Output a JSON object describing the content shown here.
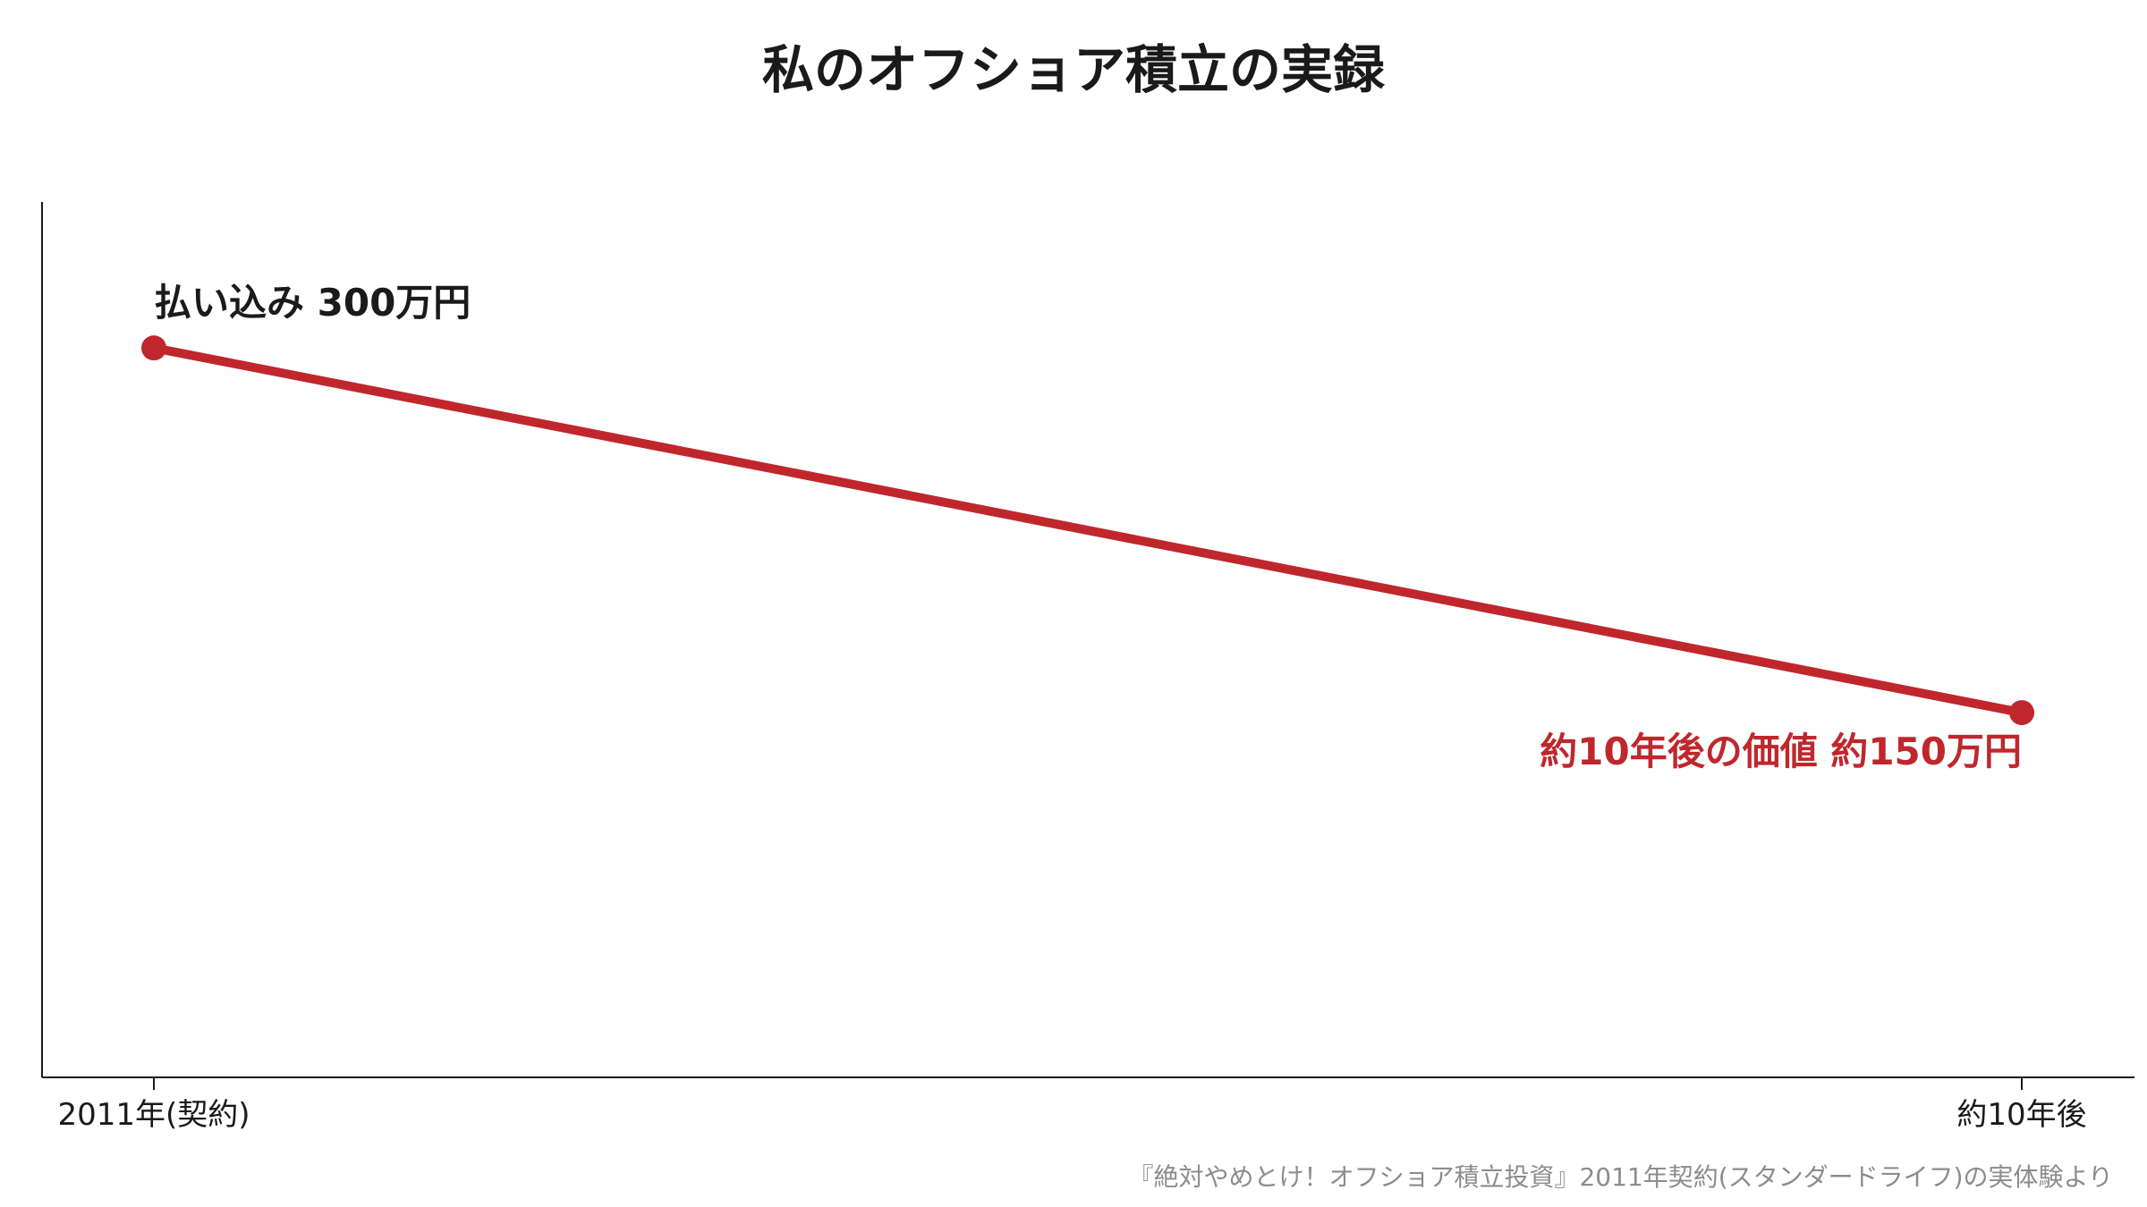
{
  "chart_data": {
    "type": "line",
    "title": "私のオフショア積立の実録",
    "categories": [
      "2011年(契約)",
      "約10年後"
    ],
    "unit": "万円",
    "series": [
      {
        "values": [
          300,
          150
        ],
        "color": "#c0272d"
      }
    ],
    "ylim": [
      0,
      360
    ],
    "grid": false,
    "annotations": [
      {
        "text": "払い込み 300万円",
        "point": 0,
        "color": "#1a1a1a"
      },
      {
        "text": "約10年後の価値 約150万円",
        "point": 1,
        "color": "#c0272d"
      }
    ],
    "source_note": "『絶対やめとけ！オフショア積立投資』2011年契約(スタンダードライフ)の実体験より"
  }
}
